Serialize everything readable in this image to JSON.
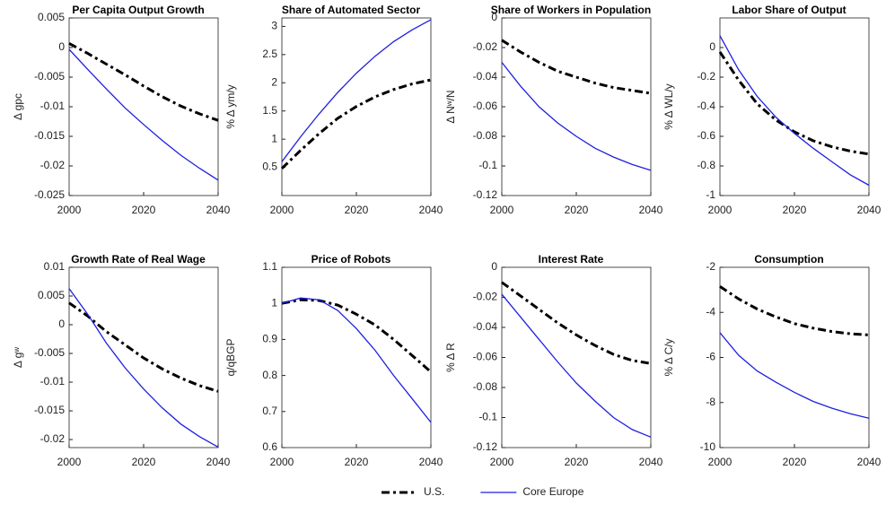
{
  "chart_data": [
    {
      "type": "line",
      "title": "Per Capita Output Growth",
      "ylabel": "Δ gpc",
      "x": [
        2000,
        2005,
        2010,
        2015,
        2020,
        2025,
        2030,
        2035,
        2040
      ],
      "xlim": [
        2000,
        2040
      ],
      "xticks": [
        2000,
        2020,
        2040
      ],
      "ylim": [
        -0.025,
        0.005
      ],
      "yticks": [
        0.005,
        0,
        -0.005,
        -0.01,
        -0.015,
        -0.02,
        -0.025
      ],
      "series": [
        {
          "name": "U.S.",
          "color": "#000000",
          "linestyle": "dash-dot",
          "values": [
            0.0007,
            -0.001,
            -0.0028,
            -0.0046,
            -0.0065,
            -0.0083,
            -0.0099,
            -0.0112,
            -0.0123
          ]
        },
        {
          "name": "Core Europe",
          "color": "#1f1fe0",
          "linestyle": "solid",
          "values": [
            -0.0003,
            -0.0037,
            -0.007,
            -0.0102,
            -0.013,
            -0.0157,
            -0.0182,
            -0.0204,
            -0.0224
          ]
        }
      ]
    },
    {
      "type": "line",
      "title": "Share of Automated Sector",
      "ylabel": "% Δ ym/y",
      "x": [
        2000,
        2005,
        2010,
        2015,
        2020,
        2025,
        2030,
        2035,
        2040
      ],
      "xlim": [
        2000,
        2040
      ],
      "xticks": [
        2000,
        2020,
        2040
      ],
      "ylim": [
        0,
        3.15
      ],
      "yticks": [
        0.5,
        1,
        1.5,
        2,
        2.5,
        3
      ],
      "series": [
        {
          "color": "#000000",
          "linestyle": "dash-dot",
          "values": [
            0.48,
            0.8,
            1.1,
            1.37,
            1.58,
            1.75,
            1.88,
            1.98,
            2.05
          ]
        },
        {
          "color": "#1f1fe0",
          "linestyle": "solid",
          "values": [
            0.6,
            1.04,
            1.45,
            1.83,
            2.17,
            2.47,
            2.73,
            2.94,
            3.12
          ]
        }
      ]
    },
    {
      "type": "line",
      "title": "Share of Workers in Population",
      "ylabel": "Δ Nʷ/N",
      "x": [
        2000,
        2005,
        2010,
        2015,
        2020,
        2025,
        2030,
        2035,
        2040
      ],
      "xlim": [
        2000,
        2040
      ],
      "xticks": [
        2000,
        2020,
        2040
      ],
      "ylim": [
        -0.12,
        0
      ],
      "yticks": [
        0,
        -0.02,
        -0.04,
        -0.06,
        -0.08,
        -0.1,
        -0.12
      ],
      "series": [
        {
          "color": "#000000",
          "linestyle": "dash-dot",
          "values": [
            -0.015,
            -0.023,
            -0.03,
            -0.036,
            -0.04,
            -0.044,
            -0.047,
            -0.049,
            -0.051
          ]
        },
        {
          "color": "#1f1fe0",
          "linestyle": "solid",
          "values": [
            -0.03,
            -0.046,
            -0.06,
            -0.071,
            -0.08,
            -0.088,
            -0.094,
            -0.099,
            -0.103
          ]
        }
      ]
    },
    {
      "type": "line",
      "title": "Labor Share of Output",
      "ylabel": "% Δ WL/y",
      "x": [
        2000,
        2005,
        2010,
        2015,
        2020,
        2025,
        2030,
        2035,
        2040
      ],
      "xlim": [
        2000,
        2040
      ],
      "xticks": [
        2000,
        2020,
        2040
      ],
      "ylim": [
        -1,
        0.2
      ],
      "yticks": [
        0,
        -0.2,
        -0.4,
        -0.6,
        -0.8,
        -1
      ],
      "series": [
        {
          "color": "#000000",
          "linestyle": "dash-dot",
          "values": [
            -0.03,
            -0.22,
            -0.38,
            -0.49,
            -0.57,
            -0.63,
            -0.67,
            -0.7,
            -0.72
          ]
        },
        {
          "color": "#1f1fe0",
          "linestyle": "solid",
          "values": [
            0.08,
            -0.15,
            -0.33,
            -0.47,
            -0.58,
            -0.68,
            -0.77,
            -0.86,
            -0.93
          ]
        }
      ]
    },
    {
      "type": "line",
      "title": "Growth Rate of Real Wage",
      "ylabel": "Δ gʷ",
      "x": [
        2000,
        2005,
        2010,
        2015,
        2020,
        2025,
        2030,
        2035,
        2040
      ],
      "xlim": [
        2000,
        2040
      ],
      "xticks": [
        2000,
        2020,
        2040
      ],
      "ylim": [
        -0.0214,
        0.01
      ],
      "yticks": [
        0.01,
        0.005,
        0,
        -0.005,
        -0.01,
        -0.015,
        -0.02
      ],
      "series": [
        {
          "color": "#000000",
          "linestyle": "dash-dot",
          "values": [
            0.0038,
            0.0015,
            -0.0012,
            -0.0035,
            -0.0058,
            -0.0077,
            -0.0093,
            -0.0106,
            -0.0116
          ]
        },
        {
          "color": "#1f1fe0",
          "linestyle": "solid",
          "values": [
            0.0063,
            0.0018,
            -0.0032,
            -0.0075,
            -0.0112,
            -0.0145,
            -0.0173,
            -0.0195,
            -0.0213
          ]
        }
      ]
    },
    {
      "type": "line",
      "title": "Price of Robots",
      "ylabel": "q/qBGP",
      "x": [
        2000,
        2005,
        2010,
        2015,
        2020,
        2025,
        2030,
        2035,
        2040
      ],
      "xlim": [
        2000,
        2040
      ],
      "xticks": [
        2000,
        2020,
        2040
      ],
      "ylim": [
        0.6,
        1.1
      ],
      "yticks": [
        1.1,
        1,
        0.9,
        0.8,
        0.7,
        0.6
      ],
      "series": [
        {
          "color": "#000000",
          "linestyle": "dash-dot",
          "values": [
            1.0,
            1.01,
            1.008,
            0.995,
            0.97,
            0.94,
            0.9,
            0.855,
            0.81
          ]
        },
        {
          "color": "#1f1fe0",
          "linestyle": "solid",
          "values": [
            1.0,
            1.015,
            1.01,
            0.98,
            0.93,
            0.87,
            0.8,
            0.735,
            0.67
          ]
        }
      ]
    },
    {
      "type": "line",
      "title": "Interest Rate",
      "ylabel": "% Δ R",
      "x": [
        2000,
        2005,
        2010,
        2015,
        2020,
        2025,
        2030,
        2035,
        2040
      ],
      "xlim": [
        2000,
        2040
      ],
      "xticks": [
        2000,
        2020,
        2040
      ],
      "ylim": [
        -0.12,
        0
      ],
      "yticks": [
        0,
        -0.02,
        -0.04,
        -0.06,
        -0.08,
        -0.1,
        -0.12
      ],
      "series": [
        {
          "color": "#000000",
          "linestyle": "dash-dot",
          "values": [
            -0.01,
            -0.019,
            -0.028,
            -0.037,
            -0.045,
            -0.052,
            -0.058,
            -0.062,
            -0.064
          ]
        },
        {
          "color": "#1f1fe0",
          "linestyle": "solid",
          "values": [
            -0.018,
            -0.033,
            -0.048,
            -0.063,
            -0.077,
            -0.089,
            -0.1,
            -0.108,
            -0.113
          ]
        }
      ]
    },
    {
      "type": "line",
      "title": "Consumption",
      "ylabel": "% Δ C/y",
      "x": [
        2000,
        2005,
        2010,
        2015,
        2020,
        2025,
        2030,
        2035,
        2040
      ],
      "xlim": [
        2000,
        2040
      ],
      "xticks": [
        2000,
        2020,
        2040
      ],
      "ylim": [
        -10,
        -2
      ],
      "yticks": [
        -2,
        -4,
        -6,
        -8,
        -10
      ],
      "series": [
        {
          "color": "#000000",
          "linestyle": "dash-dot",
          "values": [
            -2.85,
            -3.4,
            -3.85,
            -4.2,
            -4.5,
            -4.7,
            -4.85,
            -4.95,
            -5.0
          ]
        },
        {
          "color": "#1f1fe0",
          "linestyle": "solid",
          "values": [
            -4.9,
            -5.9,
            -6.6,
            -7.1,
            -7.55,
            -7.95,
            -8.25,
            -8.5,
            -8.7
          ]
        }
      ]
    }
  ]
}
